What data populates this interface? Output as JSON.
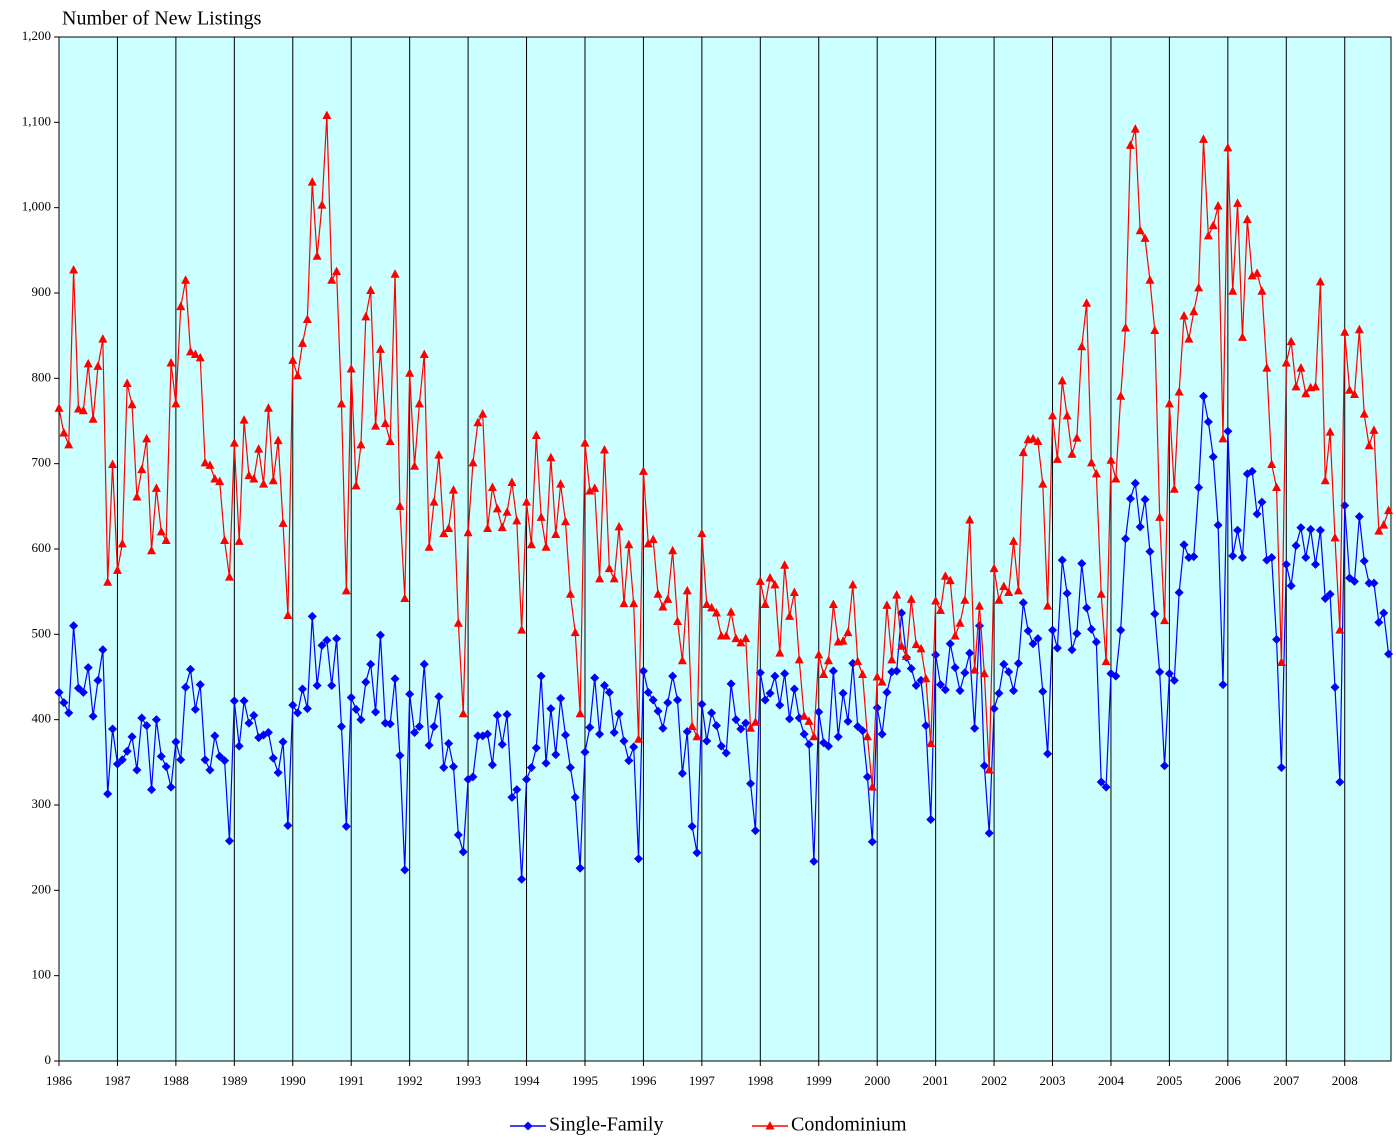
{
  "chart_data": {
    "type": "line",
    "title": "Number of New Listings",
    "categories": [
      "1986",
      null,
      null,
      null,
      null,
      null,
      null,
      null,
      null,
      null,
      null,
      null,
      "1987",
      null,
      null,
      null,
      null,
      null,
      null,
      null,
      null,
      null,
      null,
      null,
      "1988",
      null,
      null,
      null,
      null,
      null,
      null,
      null,
      null,
      null,
      null,
      null,
      "1989",
      null,
      null,
      null,
      null,
      null,
      null,
      null,
      null,
      null,
      null,
      null,
      "1990",
      null,
      null,
      null,
      null,
      null,
      null,
      null,
      null,
      null,
      null,
      null,
      "1991",
      null,
      null,
      null,
      null,
      null,
      null,
      null,
      null,
      null,
      null,
      null,
      "1992",
      null,
      null,
      null,
      null,
      null,
      null,
      null,
      null,
      null,
      null,
      null,
      "1993",
      null,
      null,
      null,
      null,
      null,
      null,
      null,
      null,
      null,
      null,
      null,
      "1994",
      null,
      null,
      null,
      null,
      null,
      null,
      null,
      null,
      null,
      null,
      null,
      "1995",
      null,
      null,
      null,
      null,
      null,
      null,
      null,
      null,
      null,
      null,
      null,
      "1996",
      null,
      null,
      null,
      null,
      null,
      null,
      null,
      null,
      null,
      null,
      null,
      "1997",
      null,
      null,
      null,
      null,
      null,
      null,
      null,
      null,
      null,
      null,
      null,
      "1998",
      null,
      null,
      null,
      null,
      null,
      null,
      null,
      null,
      null,
      null,
      null,
      "1999",
      null,
      null,
      null,
      null,
      null,
      null,
      null,
      null,
      null,
      null,
      null,
      "2000",
      null,
      null,
      null,
      null,
      null,
      null,
      null,
      null,
      null,
      null,
      null,
      "2001",
      null,
      null,
      null,
      null,
      null,
      null,
      null,
      null,
      null,
      null,
      null,
      "2002",
      null,
      null,
      null,
      null,
      null,
      null,
      null,
      null,
      null,
      null,
      null,
      "2003",
      null,
      null,
      null,
      null,
      null,
      null,
      null,
      null,
      null,
      null,
      null,
      "2004",
      null,
      null,
      null,
      null,
      null,
      null,
      null,
      null,
      null,
      null,
      null,
      "2005",
      null,
      null,
      null,
      null,
      null,
      null,
      null,
      null,
      null,
      null,
      null,
      "2006",
      null,
      null,
      null,
      null,
      null,
      null,
      null,
      null,
      null,
      null,
      null,
      "2007",
      null,
      null,
      null,
      null,
      null,
      null,
      null,
      null,
      null,
      null,
      null,
      "2008",
      null,
      null,
      null,
      null,
      null,
      null,
      null,
      null,
      null
    ],
    "series": [
      {
        "name": "Single-Family",
        "color": "#0000ff",
        "marker": "diamond",
        "values": [
          432,
          420,
          408,
          510,
          437,
          432,
          461,
          404,
          446,
          482,
          313,
          389,
          348,
          353,
          363,
          380,
          341,
          402,
          393,
          318,
          400,
          357,
          345,
          321,
          374,
          353,
          438,
          459,
          412,
          441,
          353,
          341,
          381,
          357,
          352,
          258,
          422,
          369,
          422,
          396,
          405,
          379,
          382,
          385,
          355,
          338,
          374,
          276,
          417,
          408,
          436,
          413,
          521,
          440,
          487,
          493,
          440,
          495,
          392,
          275,
          426,
          412,
          400,
          444,
          465,
          409,
          499,
          396,
          395,
          448,
          358,
          224,
          430,
          385,
          392,
          465,
          370,
          392,
          427,
          344,
          372,
          345,
          265,
          245,
          330,
          333,
          381,
          381,
          383,
          347,
          405,
          371,
          406,
          309,
          318,
          213,
          330,
          344,
          367,
          451,
          349,
          413,
          359,
          425,
          382,
          344,
          309,
          226,
          362,
          391,
          449,
          383,
          440,
          432,
          385,
          407,
          375,
          352,
          368,
          237,
          457,
          432,
          423,
          410,
          390,
          420,
          451,
          423,
          337,
          386,
          275,
          244,
          418,
          375,
          408,
          393,
          369,
          361,
          442,
          400,
          389,
          396,
          325,
          270,
          455,
          423,
          431,
          451,
          417,
          454,
          401,
          436,
          402,
          383,
          371,
          234,
          409,
          373,
          369,
          457,
          380,
          431,
          398,
          466,
          392,
          387,
          333,
          257,
          414,
          383,
          432,
          456,
          457,
          525,
          473,
          460,
          440,
          446,
          393,
          283,
          476,
          441,
          435,
          489,
          461,
          434,
          455,
          478,
          390,
          510,
          346,
          267,
          413,
          431,
          465,
          456,
          434,
          466,
          537,
          504,
          489,
          495,
          433,
          360,
          505,
          484,
          587,
          548,
          482,
          501,
          583,
          531,
          506,
          491,
          327,
          321,
          454,
          451,
          505,
          612,
          659,
          677,
          626,
          658,
          597,
          524,
          456,
          346,
          454,
          446,
          549,
          605,
          590,
          591,
          672,
          779,
          749,
          708,
          628,
          441,
          738,
          592,
          622,
          590,
          688,
          691,
          641,
          655,
          587,
          590,
          494,
          344,
          582,
          557,
          604,
          625,
          590,
          623,
          582,
          622,
          542,
          547,
          438,
          327,
          651,
          566,
          562,
          638,
          586,
          560,
          560,
          514,
          525,
          477
        ]
      },
      {
        "name": "Condominium",
        "color": "#ff0000",
        "marker": "triangle",
        "values": [
          765,
          736,
          722,
          927,
          764,
          762,
          817,
          752,
          814,
          846,
          561,
          699,
          575,
          606,
          794,
          769,
          661,
          693,
          729,
          598,
          671,
          620,
          610,
          818,
          770,
          884,
          915,
          831,
          828,
          824,
          701,
          698,
          682,
          679,
          610,
          567,
          724,
          609,
          751,
          686,
          682,
          717,
          676,
          765,
          680,
          727,
          630,
          522,
          821,
          803,
          841,
          869,
          1030,
          943,
          1003,
          1108,
          915,
          925,
          770,
          551,
          811,
          674,
          722,
          872,
          903,
          744,
          834,
          747,
          726,
          922,
          650,
          542,
          806,
          697,
          770,
          828,
          602,
          655,
          710,
          618,
          624,
          669,
          513,
          407,
          619,
          701,
          748,
          758,
          624,
          672,
          647,
          625,
          643,
          678,
          633,
          505,
          655,
          605,
          733,
          637,
          602,
          707,
          617,
          676,
          632,
          547,
          502,
          407,
          724,
          668,
          671,
          565,
          716,
          577,
          565,
          626,
          536,
          605,
          536,
          377,
          691,
          606,
          611,
          547,
          532,
          541,
          598,
          515,
          469,
          551,
          392,
          380,
          618,
          535,
          531,
          525,
          498,
          498,
          526,
          495,
          490,
          495,
          390,
          397,
          562,
          535,
          566,
          558,
          478,
          581,
          521,
          549,
          470,
          404,
          398,
          380,
          476,
          453,
          469,
          535,
          491,
          492,
          502,
          558,
          468,
          453,
          380,
          321,
          450,
          444,
          534,
          470,
          546,
          486,
          474,
          541,
          488,
          483,
          448,
          372,
          539,
          528,
          568,
          563,
          498,
          513,
          540,
          634,
          458,
          533,
          454,
          341,
          577,
          540,
          556,
          549,
          609,
          551,
          713,
          728,
          729,
          726,
          676,
          533,
          756,
          705,
          797,
          756,
          711,
          730,
          837,
          888,
          701,
          688,
          547,
          468,
          704,
          682,
          779,
          859,
          1073,
          1092,
          973,
          964,
          915,
          856,
          637,
          516,
          770,
          670,
          784,
          873,
          846,
          878,
          906,
          1080,
          967,
          979,
          1002,
          729,
          1070,
          902,
          1005,
          848,
          986,
          920,
          923,
          902,
          812,
          699,
          672,
          467,
          818,
          843,
          790,
          812,
          782,
          789,
          790,
          913,
          680,
          737,
          613,
          505,
          854,
          786,
          781,
          857,
          758,
          721,
          739,
          621,
          628,
          645
        ]
      }
    ],
    "ylim": [
      0,
      1200
    ],
    "yticks": [
      0,
      100,
      200,
      300,
      400,
      500,
      600,
      700,
      800,
      900,
      {
        "value": 1000,
        "label": "1,000"
      },
      {
        "value": 1100,
        "label": "1,100"
      },
      {
        "value": 1200,
        "label": "1,200"
      }
    ],
    "plot_background": "#ccffff",
    "xgrid": true,
    "ygrid": false,
    "legend": "bottom"
  }
}
